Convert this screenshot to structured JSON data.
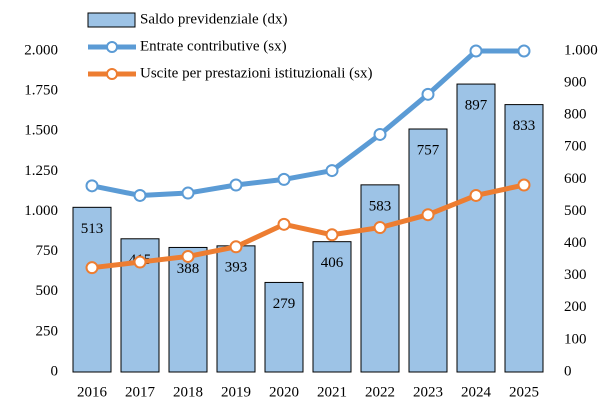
{
  "chart_data": {
    "type": "bar",
    "categories": [
      "2016",
      "2017",
      "2018",
      "2019",
      "2020",
      "2021",
      "2022",
      "2023",
      "2024",
      "2025"
    ],
    "series": [
      {
        "name": "Saldo previdenziale (dx)",
        "type": "bar",
        "axis": "y2",
        "color": "#9dc3e6",
        "values": [
          513,
          415,
          388,
          393,
          279,
          406,
          583,
          757,
          897,
          833
        ]
      },
      {
        "name": "Entrate contributive (sx)",
        "type": "line",
        "color": "#5b9bd5",
        "values": [
          1160,
          1100,
          1115,
          1165,
          1200,
          1255,
          1480,
          1730,
          2000,
          2000
        ]
      },
      {
        "name": "Uscite per prestazioni istituzionali (sx)",
        "type": "line",
        "color": "#ed7d31",
        "values": [
          650,
          685,
          720,
          780,
          920,
          855,
          900,
          980,
          1100,
          1165
        ]
      }
    ],
    "ylim": [
      0,
      2000
    ],
    "yticks": [
      0,
      250,
      500,
      750,
      {
        "value": 1000,
        "label": "1.000"
      },
      {
        "value": 1250,
        "label": "1.250"
      },
      {
        "value": 1500,
        "label": "1.500"
      },
      {
        "value": 1750,
        "label": "1.750"
      },
      {
        "value": 2000,
        "label": "2.000"
      }
    ],
    "y2lim": [
      0,
      1000
    ],
    "y2ticks": [
      0,
      100,
      200,
      300,
      400,
      500,
      600,
      700,
      800,
      900,
      {
        "value": 1000,
        "label": "1.000"
      }
    ],
    "legend": "top"
  }
}
